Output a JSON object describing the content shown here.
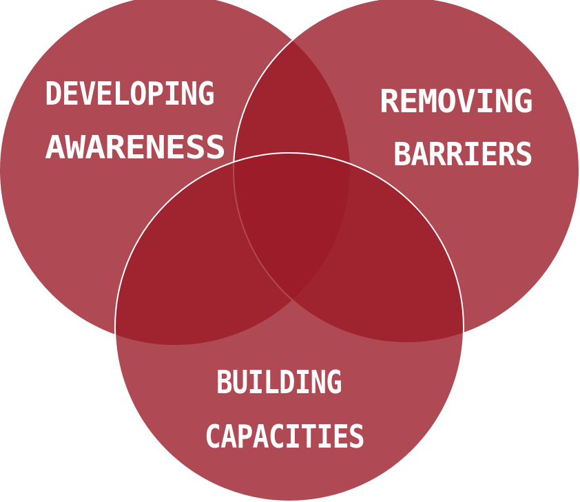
{
  "diagram": {
    "circles": [
      {
        "id": "developing-awareness",
        "lines": [
          "DEVELOPING",
          "AWARENESS"
        ]
      },
      {
        "id": "removing-barriers",
        "lines": [
          "REMOVING",
          "BARRIERS"
        ]
      },
      {
        "id": "building-capacities",
        "lines": [
          "BUILDING",
          "CAPACITIES"
        ]
      }
    ],
    "colors": {
      "circle_fill": "#9b1c28",
      "text": "#ffffff",
      "outline": "#ffffff"
    }
  }
}
